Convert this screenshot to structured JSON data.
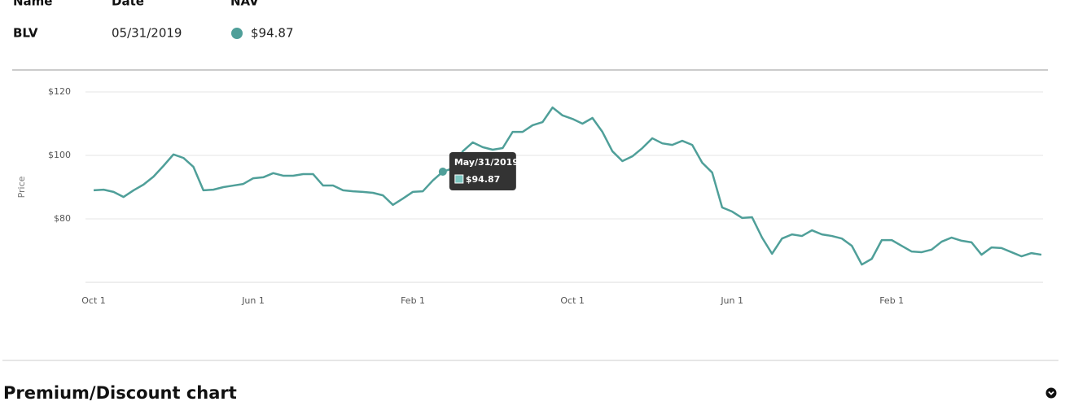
{
  "header": {
    "columns": [
      "Name",
      "Date",
      "NAV"
    ],
    "row": [
      "BLV",
      "05/31/2019",
      "$94.87"
    ]
  },
  "chart_data": {
    "type": "line",
    "ylabel": "Price",
    "categories": [
      "Oct 1",
      null,
      null,
      null,
      null,
      null,
      null,
      null,
      null,
      null,
      null,
      null,
      null,
      null,
      null,
      null,
      "Jun 1",
      null,
      null,
      null,
      null,
      null,
      null,
      null,
      null,
      null,
      null,
      null,
      null,
      null,
      null,
      null,
      "Feb 1",
      null,
      null,
      null,
      null,
      null,
      null,
      null,
      null,
      null,
      null,
      null,
      null,
      null,
      null,
      null,
      "Oct 1",
      null,
      null,
      null,
      null,
      null,
      null,
      null,
      null,
      null,
      null,
      null,
      null,
      null,
      null,
      null,
      "Jun 1",
      null,
      null,
      null,
      null,
      null,
      null,
      null,
      null,
      null,
      null,
      null,
      null,
      null,
      null,
      null,
      "Feb 1",
      null,
      null,
      null,
      null,
      null,
      null,
      null,
      null,
      null,
      null,
      null,
      null,
      null,
      null,
      null
    ],
    "series": [
      {
        "name": "BLV",
        "color": "#4f9f99",
        "values": [
          89.0,
          89.2,
          88.5,
          86.9,
          89.0,
          90.8,
          93.3,
          96.7,
          100.3,
          99.2,
          96.4,
          89.0,
          89.2,
          90.0,
          90.5,
          91.0,
          92.8,
          93.1,
          94.4,
          93.6,
          93.6,
          94.1,
          94.1,
          90.5,
          90.5,
          89.0,
          88.7,
          88.5,
          88.2,
          87.4,
          84.4,
          86.4,
          88.5,
          88.7,
          92.1,
          94.87,
          95.9,
          101.3,
          104.1,
          102.6,
          101.8,
          102.3,
          107.4,
          107.4,
          109.5,
          110.5,
          115.1,
          112.6,
          111.5,
          110.0,
          111.8,
          107.4,
          101.3,
          98.2,
          99.7,
          102.3,
          105.4,
          103.8,
          103.3,
          104.6,
          103.3,
          97.7,
          94.6,
          83.6,
          82.3,
          80.3,
          80.5,
          74.1,
          69.0,
          73.8,
          75.1,
          74.6,
          76.4,
          75.1,
          74.6,
          73.8,
          71.5,
          65.6,
          67.4,
          73.3,
          73.3,
          71.5,
          69.7,
          69.5,
          70.3,
          72.8,
          74.1,
          73.1,
          72.6,
          68.7,
          71.0,
          70.8,
          69.5,
          68.2,
          69.2,
          68.7
        ],
        "value_labels": [
          null,
          null,
          null,
          null,
          null,
          null,
          null,
          null,
          null,
          null,
          null,
          null,
          null,
          null,
          null,
          null,
          null,
          null,
          null,
          null,
          null,
          null,
          null,
          null,
          null,
          null,
          null,
          null,
          null,
          null,
          null,
          null,
          null,
          null,
          null,
          "$94.87",
          null,
          null,
          null,
          null,
          null,
          null,
          null,
          null,
          null,
          null,
          null,
          null,
          null,
          null,
          null,
          null,
          null,
          null,
          null,
          null,
          null,
          null,
          null,
          null,
          null,
          null,
          null,
          null,
          null,
          null,
          null,
          null,
          null,
          null,
          null,
          null,
          null,
          null,
          null,
          null,
          null,
          null,
          null,
          null,
          null,
          null,
          null,
          null,
          null,
          null,
          null,
          null,
          null,
          null,
          null,
          null,
          null,
          null,
          null,
          null
        ]
      }
    ],
    "tooltip_title": "May/31/2019",
    "ylim": [
      60,
      120
    ],
    "yticks": [
      {
        "value": 80,
        "label": "$80"
      },
      {
        "value": 100,
        "label": "$100"
      },
      {
        "value": 120,
        "label": "$120"
      }
    ],
    "grid": true
  },
  "section": {
    "title": "Premium/Discount chart"
  }
}
